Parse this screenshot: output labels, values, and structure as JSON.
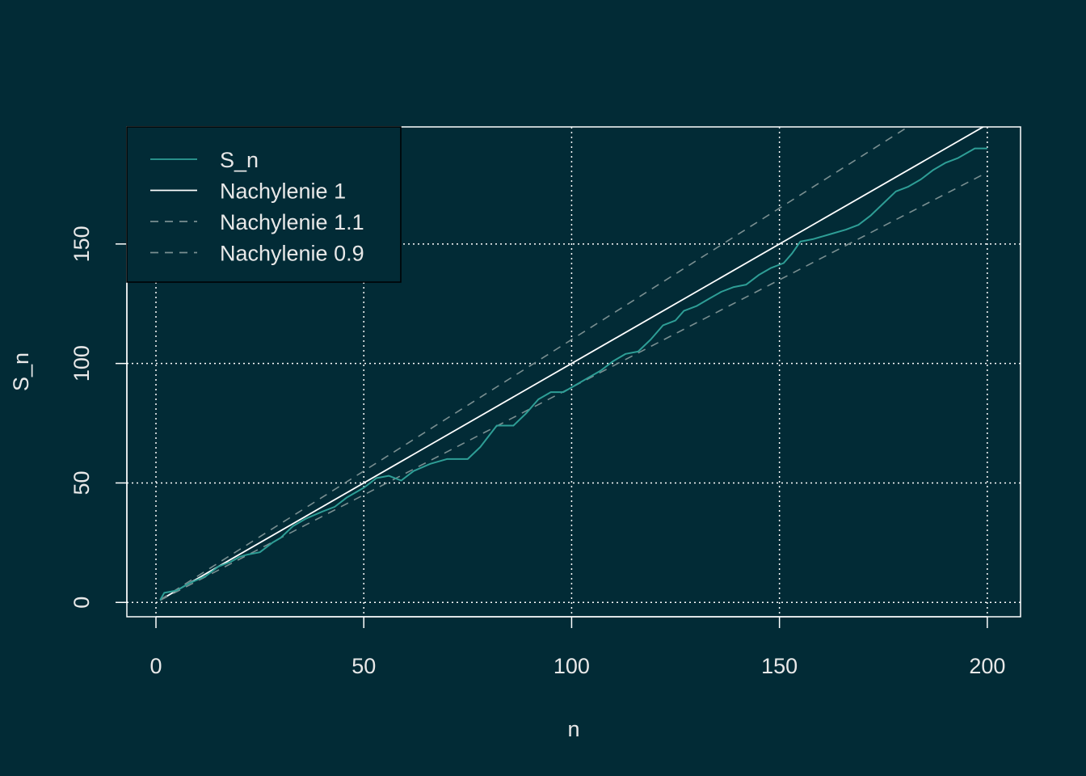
{
  "colors": {
    "background": "#022b36",
    "axis": "#ffffff",
    "text": "#e8e8e8",
    "grid": "#ffffff",
    "series_sn": "#2e9e96",
    "slope_1": "#ffffff",
    "slope_dashed": "#7a8f91"
  },
  "chart_data": {
    "type": "line",
    "xlabel": "n",
    "ylabel": "S_n",
    "xlim": [
      -7,
      208
    ],
    "ylim": [
      -6,
      199
    ],
    "x_ticks": [
      0,
      50,
      100,
      150,
      200
    ],
    "y_ticks": [
      0,
      50,
      100,
      150
    ],
    "x_tick_labels": [
      "0",
      "50",
      "100",
      "150",
      "200"
    ],
    "y_tick_labels": [
      "0",
      "50",
      "100",
      "150"
    ],
    "grid": true,
    "grid_style": "dotted",
    "legend_position": "top-left",
    "legend": [
      {
        "label": "S_n",
        "style": "solid",
        "color": "#2e9e96"
      },
      {
        "label": "Nachylenie 1",
        "style": "solid",
        "color": "#ffffff"
      },
      {
        "label": "Nachylenie 1.1",
        "style": "dashed",
        "color": "#7a8f91"
      },
      {
        "label": "Nachylenie 0.9",
        "style": "dashed",
        "color": "#7a8f91"
      }
    ],
    "series": [
      {
        "name": "S_n",
        "style": "step-line",
        "points": [
          [
            1,
            1
          ],
          [
            2,
            4
          ],
          [
            5,
            5
          ],
          [
            8,
            8
          ],
          [
            12,
            11
          ],
          [
            15,
            15
          ],
          [
            18,
            17
          ],
          [
            20,
            19
          ],
          [
            22,
            20
          ],
          [
            25,
            21
          ],
          [
            28,
            25
          ],
          [
            30,
            27
          ],
          [
            33,
            32
          ],
          [
            36,
            35
          ],
          [
            40,
            38
          ],
          [
            43,
            40
          ],
          [
            46,
            44
          ],
          [
            50,
            48
          ],
          [
            53,
            52
          ],
          [
            56,
            53
          ],
          [
            59,
            51
          ],
          [
            62,
            55
          ],
          [
            66,
            58
          ],
          [
            70,
            60
          ],
          [
            74,
            60
          ],
          [
            75,
            60
          ],
          [
            78,
            65
          ],
          [
            82,
            74
          ],
          [
            86,
            74
          ],
          [
            89,
            79
          ],
          [
            92,
            85
          ],
          [
            95,
            88
          ],
          [
            98,
            88
          ],
          [
            100,
            90
          ],
          [
            103,
            93
          ],
          [
            107,
            97
          ],
          [
            110,
            101
          ],
          [
            113,
            104
          ],
          [
            116,
            105
          ],
          [
            119,
            110
          ],
          [
            122,
            116
          ],
          [
            125,
            118
          ],
          [
            127,
            122
          ],
          [
            130,
            124
          ],
          [
            133,
            127
          ],
          [
            136,
            130
          ],
          [
            139,
            132
          ],
          [
            142,
            133
          ],
          [
            145,
            137
          ],
          [
            148,
            140
          ],
          [
            151,
            142
          ],
          [
            153,
            146
          ],
          [
            155,
            151
          ],
          [
            158,
            152
          ],
          [
            162,
            154
          ],
          [
            166,
            156
          ],
          [
            169,
            158
          ],
          [
            172,
            162
          ],
          [
            175,
            167
          ],
          [
            178,
            172
          ],
          [
            181,
            174
          ],
          [
            184,
            177
          ],
          [
            187,
            181
          ],
          [
            190,
            184
          ],
          [
            193,
            186
          ],
          [
            195,
            188
          ],
          [
            197,
            190
          ],
          [
            200,
            190
          ]
        ]
      },
      {
        "name": "Nachylenie 1",
        "style": "solid",
        "slope": 1.0,
        "x_range": [
          1,
          210
        ]
      },
      {
        "name": "Nachylenie 1.1",
        "style": "dashed",
        "slope": 1.1,
        "x_range": [
          1,
          210
        ]
      },
      {
        "name": "Nachylenie 0.9",
        "style": "dashed",
        "slope": 0.9,
        "x_range": [
          1,
          200
        ]
      }
    ]
  }
}
